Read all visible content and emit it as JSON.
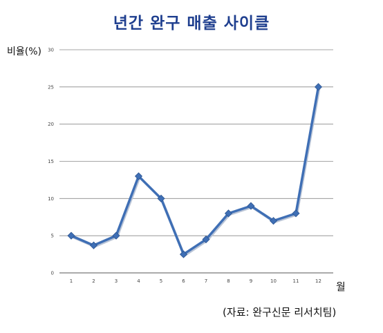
{
  "title": "년간 완구 매출 사이클",
  "ylabel": "비율(%)",
  "xlabel": "월",
  "source": "(자료: 완구신문 리서치팀)",
  "line_color": "#3f6fb5",
  "title_color": "#1f3f8f",
  "chart_data": {
    "type": "line",
    "title": "년간 완구 매출 사이클",
    "xlabel": "월",
    "ylabel": "비율(%)",
    "categories": [
      "1",
      "2",
      "3",
      "4",
      "5",
      "6",
      "7",
      "8",
      "9",
      "10",
      "11",
      "12"
    ],
    "yticks": [
      "0",
      "5",
      "10",
      "15",
      "20",
      "25",
      "30"
    ],
    "ylim": [
      0,
      30
    ],
    "grid": true,
    "legend": "none",
    "series": [
      {
        "values": [
          5,
          3.7,
          5,
          13,
          10,
          2.5,
          4.5,
          8,
          9,
          7,
          8,
          25
        ]
      }
    ]
  }
}
